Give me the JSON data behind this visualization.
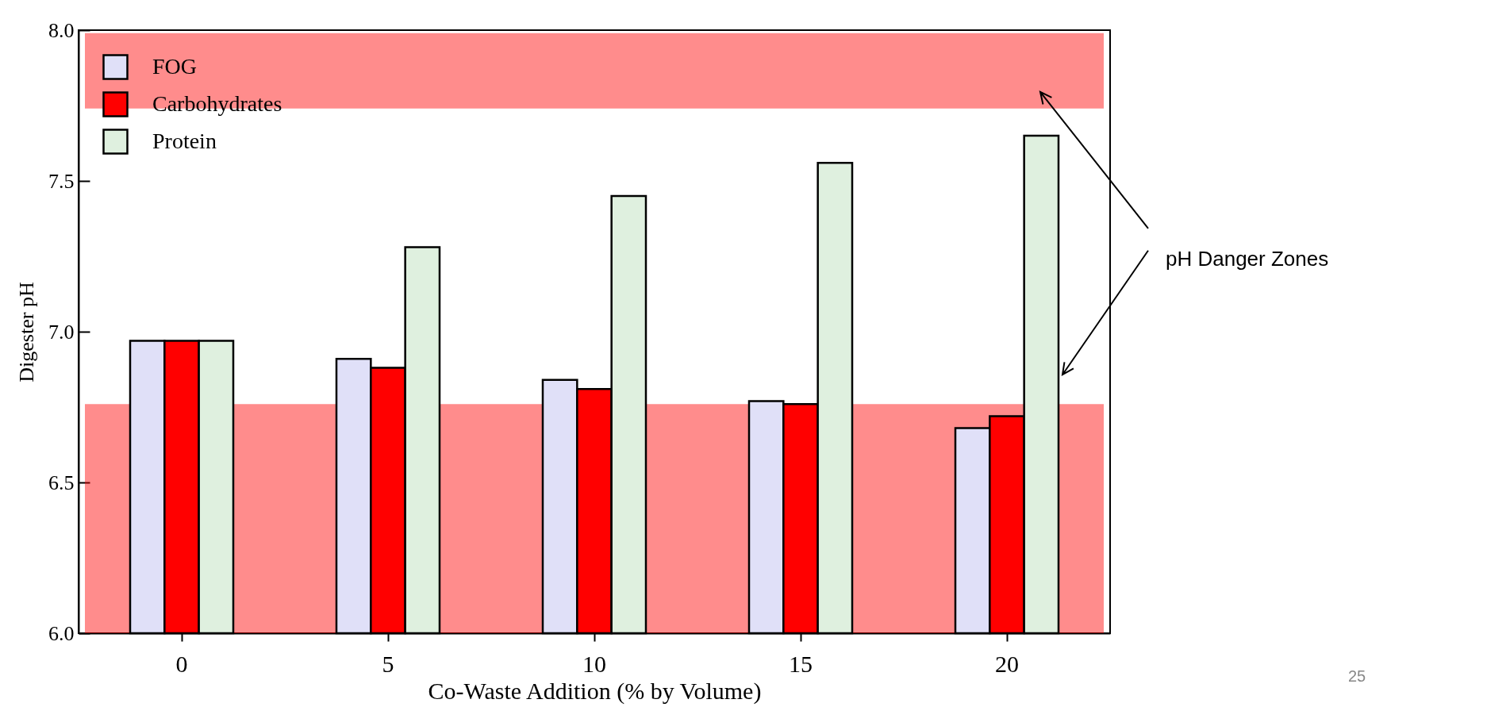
{
  "chart_data": {
    "type": "bar",
    "xlabel": "Co-Waste Addition (% by Volume)",
    "ylabel": "Digester pH",
    "categories": [
      "0",
      "5",
      "10",
      "15",
      "20"
    ],
    "series": [
      {
        "name": "FOG",
        "color": "#e0e0f8",
        "values": [
          6.97,
          6.91,
          6.84,
          6.77,
          6.68
        ]
      },
      {
        "name": "Carbohydrates",
        "color": "#ff0000",
        "values": [
          6.97,
          6.88,
          6.81,
          6.76,
          6.72
        ]
      },
      {
        "name": "Protein",
        "color": "#dff0df",
        "values": [
          6.97,
          7.28,
          7.45,
          7.56,
          7.65
        ]
      }
    ],
    "ylim": [
      6.0,
      8.0
    ],
    "yticks": [
      {
        "value": 6,
        "label": "6.0"
      },
      6.5,
      {
        "value": 7,
        "label": "7.0"
      },
      7.5,
      {
        "value": 8,
        "label": "8.0"
      }
    ],
    "bands": [
      {
        "axis": "y",
        "from": 7.74,
        "to": 7.99,
        "color": "#ff0000"
      },
      {
        "axis": "y",
        "from": 6.0,
        "to": 6.76,
        "color": "#ff0000"
      }
    ],
    "annotations": [
      "pH Danger Zones",
      "25"
    ],
    "legend": "top left",
    "grid": false
  }
}
